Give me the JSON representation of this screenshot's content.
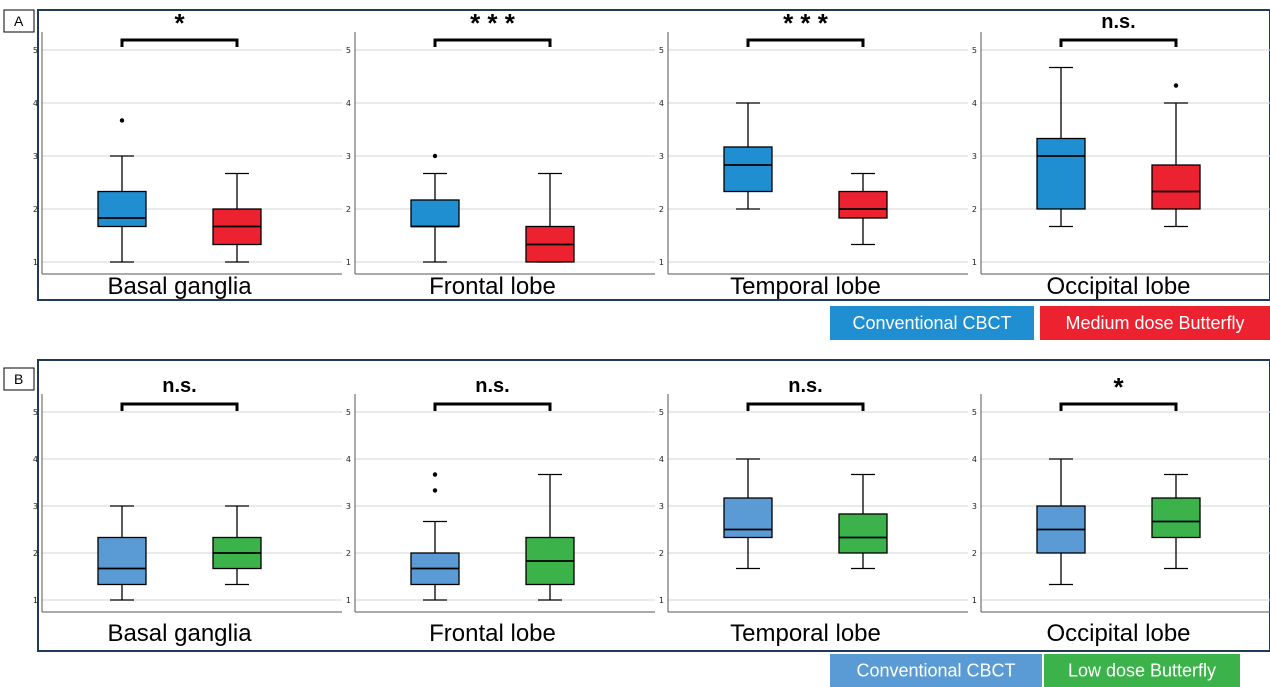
{
  "colors": {
    "conventional": "#1f8fd1",
    "conventional_b": "#5b9bd5",
    "medium": "#ec2230",
    "low": "#3bb34a",
    "frame": "#1f3a5a",
    "grid": "#d4d4d4"
  },
  "chart_data": [
    {
      "panel": "A",
      "type": "boxplot",
      "ylim": [
        1,
        5
      ],
      "yticks": [
        "1",
        "2",
        "3",
        "4",
        "5"
      ],
      "grid": true,
      "legend": {
        "placement": "bottom-right",
        "entries": [
          "Conventional CBCT",
          "Medium dose Butterfly"
        ]
      },
      "groups": [
        {
          "label": "Basal ganglia",
          "significance": "*",
          "boxes": [
            {
              "series": "Conventional CBCT",
              "min": 1.0,
              "q1": 1.67,
              "median": 1.83,
              "q3": 2.33,
              "max": 3.0,
              "outliers": [
                3.67
              ]
            },
            {
              "series": "Medium dose Butterfly",
              "min": 1.0,
              "q1": 1.33,
              "median": 1.67,
              "q3": 2.0,
              "max": 2.67,
              "outliers": []
            }
          ]
        },
        {
          "label": "Frontal lobe",
          "significance": "* * *",
          "boxes": [
            {
              "series": "Conventional CBCT",
              "min": 1.0,
              "q1": 1.67,
              "median": 1.67,
              "q3": 2.17,
              "max": 2.67,
              "outliers": [
                3.0
              ]
            },
            {
              "series": "Medium dose Butterfly",
              "min": 1.0,
              "q1": 1.0,
              "median": 1.33,
              "q3": 1.67,
              "max": 2.67,
              "outliers": []
            }
          ]
        },
        {
          "label": "Temporal lobe",
          "significance": "* * *",
          "boxes": [
            {
              "series": "Conventional CBCT",
              "min": 2.0,
              "q1": 2.33,
              "median": 2.83,
              "q3": 3.17,
              "max": 4.0,
              "outliers": []
            },
            {
              "series": "Medium dose Butterfly",
              "min": 1.33,
              "q1": 1.83,
              "median": 2.0,
              "q3": 2.33,
              "max": 2.67,
              "outliers": []
            }
          ]
        },
        {
          "label": "Occipital lobe",
          "significance": "n.s.",
          "boxes": [
            {
              "series": "Conventional CBCT",
              "min": 1.67,
              "q1": 2.0,
              "median": 3.0,
              "q3": 3.33,
              "max": 4.67,
              "outliers": []
            },
            {
              "series": "Medium dose Butterfly",
              "min": 1.67,
              "q1": 2.0,
              "median": 2.33,
              "q3": 2.83,
              "max": 4.0,
              "outliers": [
                4.33
              ]
            }
          ]
        }
      ]
    },
    {
      "panel": "B",
      "type": "boxplot",
      "ylim": [
        1,
        5
      ],
      "yticks": [
        "1",
        "2",
        "3",
        "4",
        "5"
      ],
      "grid": true,
      "legend": {
        "placement": "bottom-right",
        "entries": [
          "Conventional CBCT",
          "Low dose Butterfly"
        ]
      },
      "groups": [
        {
          "label": "Basal ganglia",
          "significance": "n.s.",
          "boxes": [
            {
              "series": "Conventional CBCT",
              "min": 1.0,
              "q1": 1.33,
              "median": 1.67,
              "q3": 2.33,
              "max": 3.0,
              "outliers": []
            },
            {
              "series": "Low dose Butterfly",
              "min": 1.33,
              "q1": 1.67,
              "median": 2.0,
              "q3": 2.33,
              "max": 3.0,
              "outliers": []
            }
          ]
        },
        {
          "label": "Frontal lobe",
          "significance": "n.s.",
          "boxes": [
            {
              "series": "Conventional CBCT",
              "min": 1.0,
              "q1": 1.33,
              "median": 1.67,
              "q3": 2.0,
              "max": 2.67,
              "outliers": [
                3.33,
                3.67
              ]
            },
            {
              "series": "Low dose Butterfly",
              "min": 1.0,
              "q1": 1.33,
              "median": 1.83,
              "q3": 2.33,
              "max": 3.67,
              "outliers": []
            }
          ]
        },
        {
          "label": "Temporal lobe",
          "significance": "n.s.",
          "boxes": [
            {
              "series": "Conventional CBCT",
              "min": 1.67,
              "q1": 2.33,
              "median": 2.5,
              "q3": 3.17,
              "max": 4.0,
              "outliers": []
            },
            {
              "series": "Low dose Butterfly",
              "min": 1.67,
              "q1": 2.0,
              "median": 2.33,
              "q3": 2.83,
              "max": 3.67,
              "outliers": []
            }
          ]
        },
        {
          "label": "Occipital lobe",
          "significance": "*",
          "boxes": [
            {
              "series": "Conventional CBCT",
              "min": 1.33,
              "q1": 2.0,
              "median": 2.5,
              "q3": 3.0,
              "max": 4.0,
              "outliers": []
            },
            {
              "series": "Low dose Butterfly",
              "min": 1.67,
              "q1": 2.33,
              "median": 2.67,
              "q3": 3.17,
              "max": 3.67,
              "outliers": []
            }
          ]
        }
      ]
    }
  ]
}
